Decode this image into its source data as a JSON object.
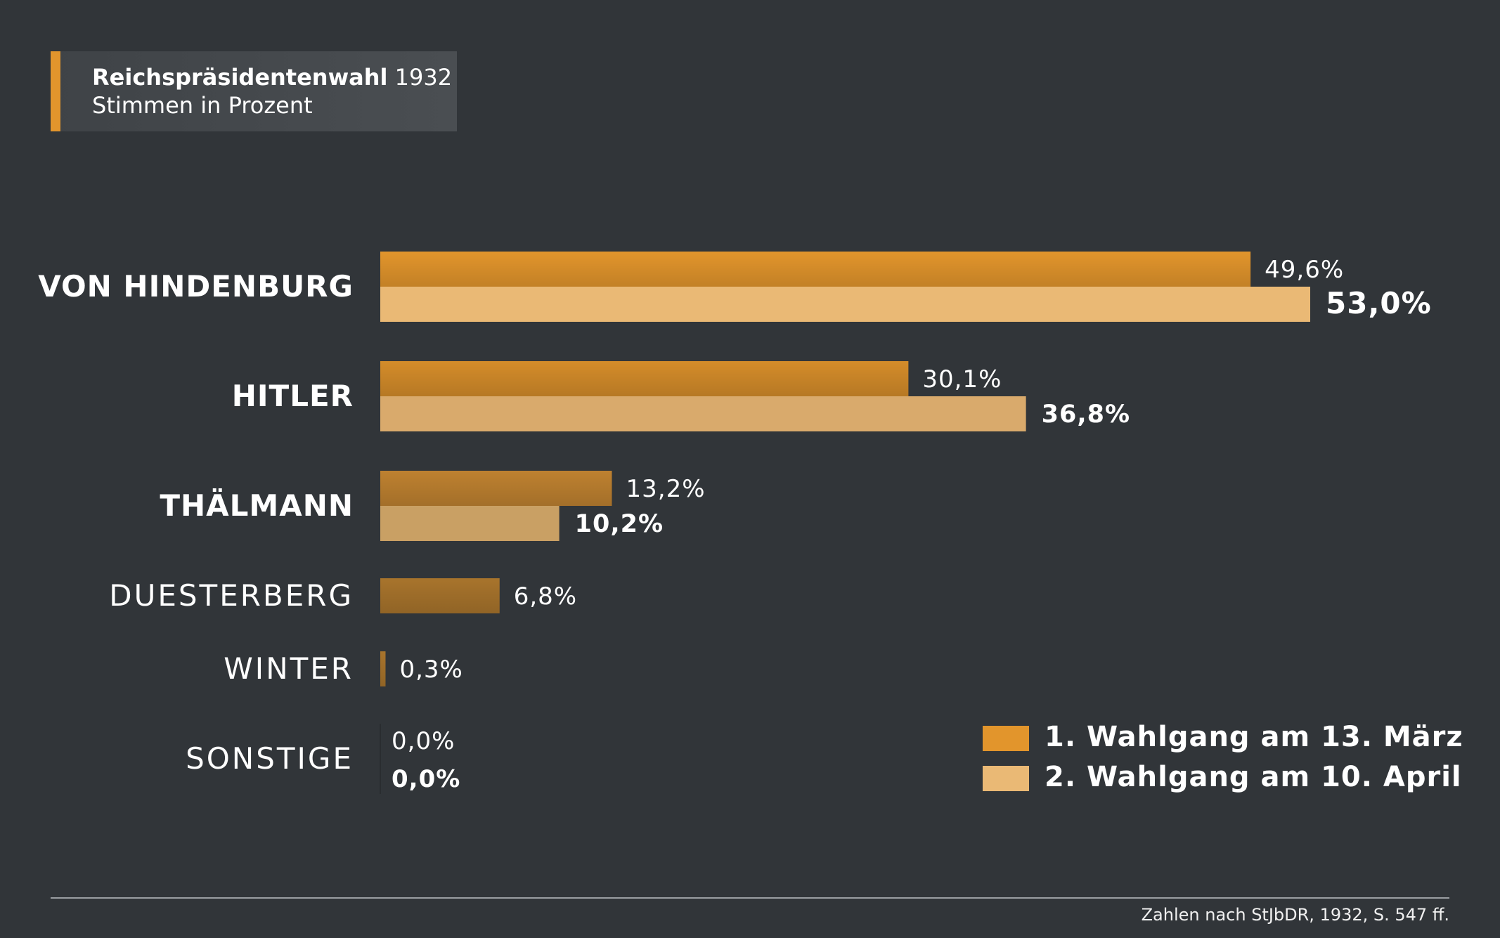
{
  "title": {
    "bold": "Reichspräsidentenwahl",
    "year": "1932",
    "subtitle": "Stimmen in Prozent"
  },
  "colors": {
    "background": "#313539",
    "round1": "#e2952c",
    "round2": "#eab975",
    "accent": "#e2952c"
  },
  "chart_data": {
    "type": "bar",
    "orientation": "horizontal",
    "title": "Reichspräsidentenwahl 1932",
    "subtitle": "Stimmen in Prozent",
    "xlim": [
      0,
      53
    ],
    "grid": false,
    "legend_position": "bottom-right",
    "categories": [
      {
        "name": "VON HINDENBURG",
        "bold": true
      },
      {
        "name": "HITLER",
        "bold": true
      },
      {
        "name": "THÄLMANN",
        "bold": true
      },
      {
        "name": "DUESTERBERG",
        "bold": false
      },
      {
        "name": "WINTER",
        "bold": false
      },
      {
        "name": "SONSTIGE",
        "bold": false
      }
    ],
    "series": [
      {
        "name": "1. Wahlgang am 13. März",
        "values": [
          49.6,
          30.1,
          13.2,
          6.8,
          0.3,
          0.0
        ],
        "labels": [
          "49,6%",
          "30,1%",
          "13,2%",
          "6,8%",
          "0,3%",
          "0,0%"
        ]
      },
      {
        "name": "2. Wahlgang am 10. April",
        "values": [
          53.0,
          36.8,
          10.2,
          null,
          null,
          0.0
        ],
        "labels": [
          "53,0%",
          "36,8%",
          "10,2%",
          null,
          null,
          "0,0%"
        ]
      }
    ]
  },
  "legend": [
    {
      "label": "1. Wahlgang am 13. März",
      "color": "#e2952c"
    },
    {
      "label": "2. Wahlgang am 10. April",
      "color": "#eab975"
    }
  ],
  "source": "Zahlen nach StJbDR, 1932, S. 547 ff."
}
